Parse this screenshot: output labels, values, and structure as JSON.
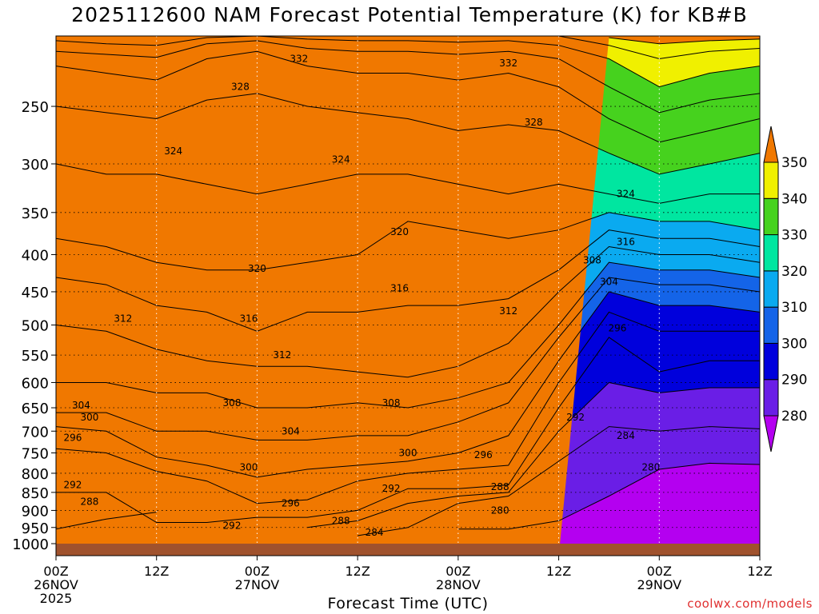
{
  "title": "2025112600 NAM Forecast Potential Temperature (K) for KB#B",
  "credit": "coolwx.com/models",
  "chart_data": {
    "type": "heatmap",
    "title": "2025112600 NAM Forecast Potential Temperature (K) for KB#B",
    "xlabel": "Forecast Time (UTC)",
    "ylabel": "",
    "x_range_hours": [
      0,
      84
    ],
    "y_range_hpa": [
      1000,
      200
    ],
    "y_scale": "log",
    "grid": true,
    "y_ticks": [
      250,
      300,
      350,
      400,
      450,
      500,
      550,
      600,
      650,
      700,
      750,
      800,
      850,
      900,
      950,
      1000
    ],
    "x_ticks": [
      {
        "hour": 0,
        "label": "00Z",
        "date": "26NOV",
        "year": "2025"
      },
      {
        "hour": 12,
        "label": "12Z",
        "date": "",
        "year": ""
      },
      {
        "hour": 24,
        "label": "00Z",
        "date": "27NOV",
        "year": ""
      },
      {
        "hour": 36,
        "label": "12Z",
        "date": "",
        "year": ""
      },
      {
        "hour": 48,
        "label": "00Z",
        "date": "28NOV",
        "year": ""
      },
      {
        "hour": 60,
        "label": "12Z",
        "date": "",
        "year": ""
      },
      {
        "hour": 72,
        "label": "00Z",
        "date": "29NOV",
        "year": ""
      },
      {
        "hour": 84,
        "label": "12Z",
        "date": "",
        "year": ""
      }
    ],
    "colorbar": {
      "levels": [
        280,
        290,
        300,
        310,
        320,
        330,
        340,
        350
      ],
      "colors": [
        "#b400f0",
        "#6a1ee6",
        "#0000dc",
        "#1464e8",
        "#0aaaf0",
        "#00e6a0",
        "#46d21e",
        "#f0f000",
        "#f0b400",
        "#f07800"
      ]
    },
    "contour_interval_K": 4,
    "isentrope_profiles": {
      "hours": [
        0,
        6,
        12,
        18,
        24,
        30,
        36,
        42,
        48,
        54,
        60,
        66,
        72,
        78,
        84
      ],
      "series": [
        {
          "theta": 280,
          "p": [
            null,
            null,
            null,
            null,
            null,
            null,
            null,
            null,
            955,
            955,
            930,
            860,
            790,
            775,
            778
          ]
        },
        {
          "theta": 284,
          "p": [
            null,
            null,
            null,
            null,
            null,
            null,
            975,
            950,
            880,
            860,
            770,
            690,
            700,
            690,
            695
          ]
        },
        {
          "theta": 288,
          "p": [
            955,
            925,
            905,
            null,
            null,
            950,
            930,
            880,
            860,
            850,
            700,
            600,
            620,
            610,
            610
          ]
        },
        {
          "theta": 292,
          "p": [
            850,
            850,
            935,
            935,
            920,
            920,
            900,
            840,
            840,
            830,
            650,
            520,
            580,
            560,
            560
          ]
        },
        {
          "theta": 296,
          "p": [
            740,
            750,
            795,
            820,
            880,
            870,
            820,
            800,
            790,
            780,
            600,
            480,
            510,
            510,
            510
          ]
        },
        {
          "theta": 300,
          "p": [
            690,
            700,
            760,
            780,
            810,
            790,
            780,
            770,
            750,
            710,
            560,
            450,
            470,
            470,
            480
          ]
        },
        {
          "theta": 304,
          "p": [
            660,
            660,
            700,
            700,
            720,
            720,
            710,
            710,
            680,
            640,
            520,
            430,
            440,
            440,
            450
          ]
        },
        {
          "theta": 308,
          "p": [
            600,
            600,
            620,
            620,
            650,
            650,
            640,
            650,
            630,
            600,
            500,
            410,
            420,
            420,
            430
          ]
        },
        {
          "theta": 312,
          "p": [
            500,
            510,
            540,
            560,
            570,
            570,
            580,
            590,
            570,
            530,
            450,
            390,
            400,
            400,
            410
          ]
        },
        {
          "theta": 316,
          "p": [
            430,
            440,
            470,
            480,
            510,
            480,
            480,
            470,
            470,
            460,
            420,
            370,
            380,
            380,
            390
          ]
        },
        {
          "theta": 320,
          "p": [
            380,
            390,
            410,
            420,
            420,
            410,
            400,
            360,
            370,
            380,
            370,
            350,
            360,
            360,
            370
          ]
        },
        {
          "theta": 324,
          "p": [
            300,
            310,
            310,
            320,
            330,
            320,
            310,
            310,
            320,
            330,
            320,
            330,
            340,
            330,
            330
          ]
        },
        {
          "theta": 328,
          "p": [
            250,
            255,
            260,
            245,
            240,
            250,
            255,
            260,
            270,
            265,
            270,
            290,
            310,
            300,
            290
          ]
        },
        {
          "theta": 332,
          "p": [
            220,
            225,
            230,
            215,
            210,
            220,
            225,
            225,
            230,
            225,
            235,
            260,
            280,
            270,
            260
          ]
        },
        {
          "theta": 336,
          "p": [
            210,
            212,
            214,
            205,
            203,
            208,
            210,
            210,
            212,
            210,
            215,
            235,
            255,
            245,
            240
          ]
        },
        {
          "theta": 340,
          "p": [
            203,
            205,
            206,
            201,
            200,
            202,
            203,
            203,
            204,
            203,
            206,
            215,
            235,
            225,
            220
          ]
        },
        {
          "theta": 344,
          "p": [
            null,
            null,
            null,
            null,
            null,
            null,
            null,
            null,
            null,
            null,
            200,
            206,
            215,
            210,
            208
          ]
        },
        {
          "theta": 348,
          "p": [
            null,
            null,
            null,
            null,
            null,
            null,
            null,
            null,
            null,
            null,
            null,
            201,
            205,
            203,
            202
          ]
        }
      ]
    },
    "contour_labels": [
      {
        "text": "332",
        "hour": 29,
        "p": 215
      },
      {
        "text": "332",
        "hour": 54,
        "p": 218
      },
      {
        "text": "328",
        "hour": 22,
        "p": 235
      },
      {
        "text": "328",
        "hour": 57,
        "p": 263
      },
      {
        "text": "324",
        "hour": 14,
        "p": 288
      },
      {
        "text": "324",
        "hour": 34,
        "p": 296
      },
      {
        "text": "324",
        "hour": 68,
        "p": 330
      },
      {
        "text": "320",
        "hour": 41,
        "p": 372
      },
      {
        "text": "320",
        "hour": 24,
        "p": 418
      },
      {
        "text": "316",
        "hour": 68,
        "p": 384
      },
      {
        "text": "308",
        "hour": 64,
        "p": 407
      },
      {
        "text": "316",
        "hour": 41,
        "p": 445
      },
      {
        "text": "304",
        "hour": 66,
        "p": 436
      },
      {
        "text": "312",
        "hour": 8,
        "p": 490
      },
      {
        "text": "316",
        "hour": 23,
        "p": 490
      },
      {
        "text": "312",
        "hour": 54,
        "p": 478
      },
      {
        "text": "296",
        "hour": 67,
        "p": 505
      },
      {
        "text": "312",
        "hour": 27,
        "p": 550
      },
      {
        "text": "308",
        "hour": 21,
        "p": 640
      },
      {
        "text": "308",
        "hour": 40,
        "p": 640
      },
      {
        "text": "304",
        "hour": 3,
        "p": 645
      },
      {
        "text": "300",
        "hour": 4,
        "p": 670
      },
      {
        "text": "304",
        "hour": 28,
        "p": 700
      },
      {
        "text": "292",
        "hour": 62,
        "p": 670
      },
      {
        "text": "296",
        "hour": 2,
        "p": 715
      },
      {
        "text": "284",
        "hour": 68,
        "p": 710
      },
      {
        "text": "300",
        "hour": 42,
        "p": 750
      },
      {
        "text": "296",
        "hour": 51,
        "p": 755
      },
      {
        "text": "300",
        "hour": 23,
        "p": 785
      },
      {
        "text": "280",
        "hour": 71,
        "p": 785
      },
      {
        "text": "292",
        "hour": 2,
        "p": 830
      },
      {
        "text": "292",
        "hour": 40,
        "p": 840
      },
      {
        "text": "288",
        "hour": 53,
        "p": 835
      },
      {
        "text": "288",
        "hour": 4,
        "p": 875
      },
      {
        "text": "296",
        "hour": 28,
        "p": 880
      },
      {
        "text": "280",
        "hour": 53,
        "p": 900
      },
      {
        "text": "292",
        "hour": 21,
        "p": 945
      },
      {
        "text": "288",
        "hour": 34,
        "p": 930
      },
      {
        "text": "284",
        "hour": 38,
        "p": 965
      }
    ]
  }
}
